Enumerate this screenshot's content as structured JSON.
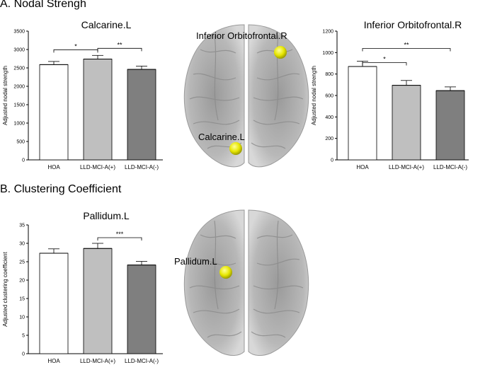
{
  "sections": {
    "a_title": "A. Nodal Strengh",
    "b_title": "B. Clustering Coefficient"
  },
  "brain_labels": {
    "top_right_node": "Inferior Orbitofrontal.R",
    "top_bottom_node": "Calcarine.L",
    "bottom_node": "Pallidum.L"
  },
  "colors": {
    "hoa": "#ffffff",
    "lld_mci_a_pos": "#bfbfbf",
    "lld_mci_a_neg": "#7f7f7f",
    "node": "#e6e600",
    "brain": "#b4b4b4"
  },
  "chart_data": [
    {
      "id": "calcarine",
      "type": "bar",
      "title": "Calcarine.L",
      "ylabel": "Adjusted nodal strength",
      "xlabel": "",
      "categories": [
        "HOA",
        "LLD-MCI-A(+)",
        "LLD-MCI-A(-)"
      ],
      "values": [
        2590,
        2740,
        2460
      ],
      "errors": [
        85,
        100,
        90
      ],
      "ylim": [
        0,
        3500
      ],
      "yticks": [
        0,
        500,
        1000,
        1500,
        2000,
        2500,
        3000,
        3500
      ],
      "significance": [
        {
          "from": 0,
          "to": 1,
          "label": "*"
        },
        {
          "from": 1,
          "to": 2,
          "label": "**"
        }
      ]
    },
    {
      "id": "orbitofrontal",
      "type": "bar",
      "title": "Inferior Orbitofrontal.R",
      "ylabel": "Adjusted nodal strength",
      "xlabel": "",
      "categories": [
        "HOA",
        "LLD-MCI-A(+)",
        "LLD-MCI-A(-)"
      ],
      "values": [
        870,
        695,
        645
      ],
      "errors": [
        50,
        45,
        35
      ],
      "ylim": [
        0,
        1200
      ],
      "yticks": [
        0,
        200,
        400,
        600,
        800,
        1000,
        1200
      ],
      "significance": [
        {
          "from": 0,
          "to": 1,
          "label": "*"
        },
        {
          "from": 0,
          "to": 2,
          "label": "**"
        }
      ]
    },
    {
      "id": "pallidum",
      "type": "bar",
      "title": "Pallidum.L",
      "ylabel": "Adjusted clustering coefficient",
      "xlabel": "",
      "categories": [
        "HOA",
        "LLD-MCI-A(+)",
        "LLD-MCI-A(-)"
      ],
      "values": [
        27.3,
        28.6,
        24.1
      ],
      "errors": [
        1.2,
        1.4,
        1.0
      ],
      "ylim": [
        0,
        35
      ],
      "yticks": [
        0,
        5,
        10,
        15,
        20,
        25,
        30,
        35
      ],
      "significance": [
        {
          "from": 1,
          "to": 2,
          "label": "***"
        }
      ]
    }
  ]
}
